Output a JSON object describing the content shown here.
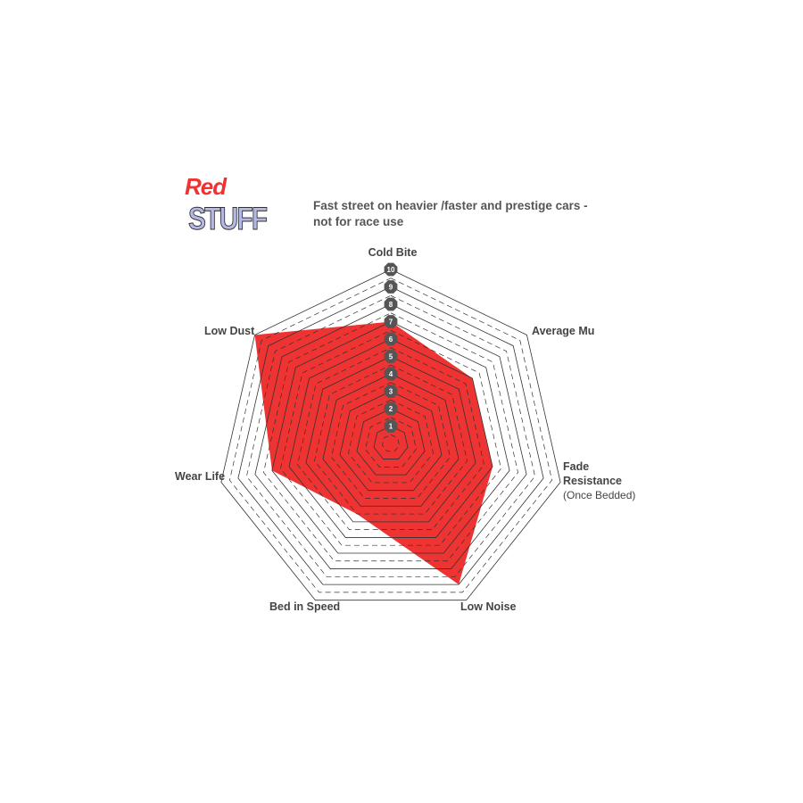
{
  "logo": {
    "line1": "Red",
    "line2": "STUFF"
  },
  "subtitle": [
    "Fast street on heavier /faster and prestige cars -",
    "not for race use"
  ],
  "chart_data": {
    "type": "radar",
    "title": "Fast street on heavier /faster and prestige cars - not for race use",
    "axes": [
      "Cold Bite",
      "Average Mu",
      "Fade Resistance (Once Bedded)",
      "Low Noise",
      "Bed in Speed",
      "Wear Life",
      "Low Dust"
    ],
    "values": [
      7,
      6,
      6,
      9,
      4.5,
      7,
      10
    ],
    "range": [
      0,
      10
    ],
    "ticks": [
      "1",
      "2",
      "3",
      "4",
      "5",
      "6",
      "7",
      "8",
      "9",
      "10"
    ],
    "fill_color": "#ee3333",
    "grid_color": "#333333",
    "tick_badge_color": "#555555"
  },
  "labels": {
    "cold_bite": "Cold Bite",
    "average_mu": "Average Mu",
    "fade": "Fade",
    "resistance": "Resistance",
    "once_bedded": "(Once Bedded)",
    "low_noise": "Low Noise",
    "bed_in_speed": "Bed in Speed",
    "wear_life": "Wear Life",
    "low_dust": "Low Dust"
  }
}
